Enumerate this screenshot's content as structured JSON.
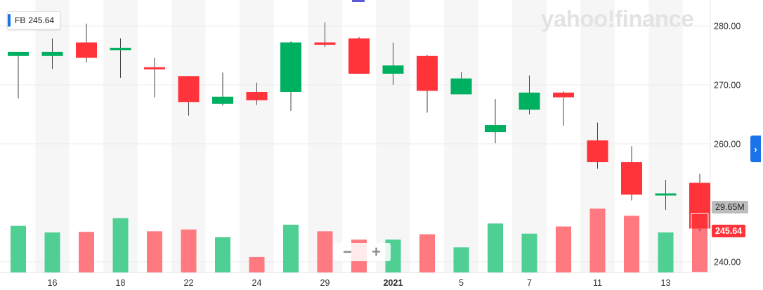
{
  "symbol_badge": {
    "symbol": "FB",
    "price": "245.64",
    "accent_color": "#1a73e8"
  },
  "watermark": "yahoo!finance",
  "price_tags": {
    "volume": "29.65M",
    "last_price": "245.64"
  },
  "zoom": {
    "minus": "−",
    "plus": "+"
  },
  "side_arrow": "›",
  "colors": {
    "up": "#00b061",
    "down": "#ff333a",
    "vol_up": "#4fcf94",
    "vol_down": "#ff7a80"
  },
  "chart_data": {
    "type": "candlestick",
    "y_ticks": [
      "280.00",
      "270.00",
      "260.00",
      "240.00"
    ],
    "y_tick_values": [
      280,
      270,
      260,
      240
    ],
    "ylim": [
      238.2,
      284.4
    ],
    "x_labels": [
      {
        "text": "16",
        "index": 1
      },
      {
        "text": "18",
        "index": 3
      },
      {
        "text": "22",
        "index": 5
      },
      {
        "text": "24",
        "index": 7
      },
      {
        "text": "29",
        "index": 9
      },
      {
        "text": "2021",
        "index": 11,
        "bold": true
      },
      {
        "text": "5",
        "index": 13
      },
      {
        "text": "7",
        "index": 15
      },
      {
        "text": "11",
        "index": 17
      },
      {
        "text": "13",
        "index": 19
      }
    ],
    "candles": [
      {
        "o": 274.9,
        "h": 275.6,
        "l": 267.7,
        "c": 275.6,
        "v": 0.78
      },
      {
        "o": 274.9,
        "h": 277.9,
        "l": 272.7,
        "c": 275.6,
        "v": 0.67
      },
      {
        "o": 277.2,
        "h": 280.4,
        "l": 273.8,
        "c": 274.6,
        "v": 0.68
      },
      {
        "o": 275.9,
        "h": 277.9,
        "l": 271.2,
        "c": 276.3,
        "v": 0.91
      },
      {
        "o": 273.0,
        "h": 274.6,
        "l": 267.9,
        "c": 272.7,
        "v": 0.69
      },
      {
        "o": 271.5,
        "h": 271.5,
        "l": 264.8,
        "c": 267.1,
        "v": 0.72
      },
      {
        "o": 266.8,
        "h": 272.1,
        "l": 266.5,
        "c": 268.0,
        "v": 0.59
      },
      {
        "o": 268.8,
        "h": 270.4,
        "l": 266.6,
        "c": 267.4,
        "v": 0.26
      },
      {
        "o": 268.8,
        "h": 277.4,
        "l": 265.6,
        "c": 277.2,
        "v": 0.8
      },
      {
        "o": 277.2,
        "h": 280.6,
        "l": 276.4,
        "c": 276.8,
        "v": 0.69
      },
      {
        "o": 277.9,
        "h": 278.1,
        "l": 271.9,
        "c": 271.9,
        "v": 0.55
      },
      {
        "o": 271.9,
        "h": 277.2,
        "l": 270.0,
        "c": 273.3,
        "v": 0.55
      },
      {
        "o": 274.9,
        "h": 275.1,
        "l": 265.3,
        "c": 269.0,
        "v": 0.64
      },
      {
        "o": 268.4,
        "h": 272.2,
        "l": 268.4,
        "c": 271.1,
        "v": 0.42
      },
      {
        "o": 262.0,
        "h": 267.6,
        "l": 260.1,
        "c": 263.2,
        "v": 0.82
      },
      {
        "o": 265.8,
        "h": 271.6,
        "l": 265.0,
        "c": 268.7,
        "v": 0.65
      },
      {
        "o": 268.7,
        "h": 268.9,
        "l": 263.1,
        "c": 267.9,
        "v": 0.77
      },
      {
        "o": 260.6,
        "h": 263.6,
        "l": 255.8,
        "c": 256.9,
        "v": 1.07
      },
      {
        "o": 256.9,
        "h": 259.6,
        "l": 250.4,
        "c": 251.4,
        "v": 0.95
      },
      {
        "o": 251.5,
        "h": 253.9,
        "l": 248.8,
        "c": 251.6,
        "v": 0.67
      },
      {
        "o": 253.4,
        "h": 254.9,
        "l": 245.2,
        "c": 245.64,
        "v": 1.0
      }
    ]
  }
}
